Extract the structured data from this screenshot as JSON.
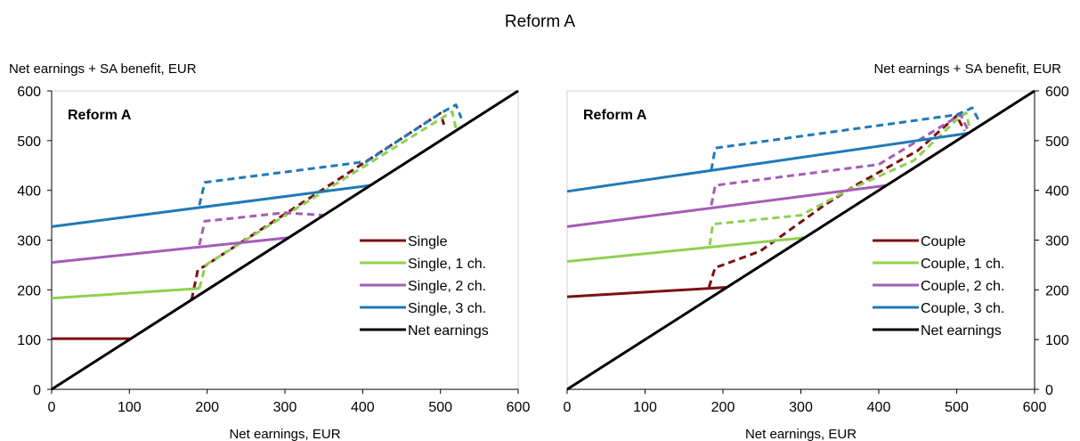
{
  "figure_title": "Reform A",
  "chart_data": [
    {
      "type": "line",
      "panel_label": "Reform A",
      "xlabel": "Net earnings, EUR",
      "ylabel": "Net earnings + SA benefit, EUR",
      "xlim": [
        0,
        600
      ],
      "ylim": [
        0,
        600
      ],
      "xticks": [
        0,
        100,
        200,
        300,
        400,
        500,
        600
      ],
      "yticks": [
        0,
        100,
        200,
        300,
        400,
        500,
        600
      ],
      "yaxis_side": "left",
      "legend_position": "bottom-right",
      "series": [
        {
          "name": "Single",
          "color": "#7b1113",
          "style": "solid",
          "points": [
            [
              0,
              102
            ],
            [
              102,
              102
            ]
          ]
        },
        {
          "name": "Single",
          "color": "#7b1113",
          "style": "dashed",
          "legend": false,
          "points": [
            [
              180,
              180
            ],
            [
              188,
              240
            ],
            [
              197,
              248
            ],
            [
              500,
              555
            ],
            [
              505,
              530
            ]
          ]
        },
        {
          "name": "Single, 1 ch.",
          "color": "#8fd14f",
          "style": "solid",
          "points": [
            [
              0,
              183
            ],
            [
              190,
              203
            ]
          ]
        },
        {
          "name": "Single, 1 ch.",
          "color": "#8fd14f",
          "style": "dashed",
          "legend": false,
          "points": [
            [
              190,
              203
            ],
            [
              198,
              250
            ],
            [
              515,
              558
            ],
            [
              520,
              525
            ]
          ]
        },
        {
          "name": "Single, 2 ch.",
          "color": "#a55cb8",
          "style": "solid",
          "points": [
            [
              0,
              255
            ],
            [
              305,
              305
            ]
          ]
        },
        {
          "name": "Single, 2 ch.",
          "color": "#a55cb8",
          "style": "dashed",
          "legend": false,
          "points": [
            [
              190,
              290
            ],
            [
              197,
              338
            ],
            [
              300,
              355
            ],
            [
              350,
              350
            ]
          ]
        },
        {
          "name": "Single, 3 ch.",
          "color": "#1f7ab8",
          "style": "solid",
          "points": [
            [
              0,
              327
            ],
            [
              410,
              410
            ]
          ]
        },
        {
          "name": "Single, 3 ch.",
          "color": "#1f7ab8",
          "style": "dashed",
          "legend": false,
          "points": [
            [
              190,
              370
            ],
            [
              197,
              416
            ],
            [
              405,
              458
            ],
            [
              500,
              555
            ],
            [
              520,
              572
            ],
            [
              527,
              545
            ]
          ]
        },
        {
          "name": "Net earnings",
          "color": "#000000",
          "style": "solid",
          "points": [
            [
              0,
              0
            ],
            [
              600,
              600
            ]
          ]
        }
      ]
    },
    {
      "type": "line",
      "panel_label": "Reform A",
      "xlabel": "Net earnings, EUR",
      "ylabel": "Net earnings + SA benefit, EUR",
      "xlim": [
        0,
        600
      ],
      "ylim": [
        0,
        600
      ],
      "xticks": [
        0,
        100,
        200,
        300,
        400,
        500,
        600
      ],
      "yticks": [
        0,
        100,
        200,
        300,
        400,
        500,
        600
      ],
      "yaxis_side": "right",
      "legend_position": "bottom-right",
      "series": [
        {
          "name": "Couple",
          "color": "#7b1113",
          "style": "solid",
          "points": [
            [
              0,
              186
            ],
            [
              205,
              205
            ]
          ]
        },
        {
          "name": "Couple",
          "color": "#7b1113",
          "style": "dashed",
          "legend": false,
          "points": [
            [
              182,
              205
            ],
            [
              190,
              245
            ],
            [
              200,
              250
            ],
            [
              248,
              278
            ],
            [
              330,
              370
            ],
            [
              370,
              410
            ],
            [
              450,
              480
            ],
            [
              500,
              550
            ],
            [
              510,
              520
            ]
          ]
        },
        {
          "name": "Couple, 1 ch.",
          "color": "#8fd14f",
          "style": "solid",
          "points": [
            [
              0,
              257
            ],
            [
              305,
              305
            ]
          ]
        },
        {
          "name": "Couple, 1 ch.",
          "color": "#8fd14f",
          "style": "dashed",
          "legend": false,
          "points": [
            [
              183,
              290
            ],
            [
              187,
              332
            ],
            [
              300,
              350
            ],
            [
              360,
              400
            ],
            [
              445,
              460
            ],
            [
              500,
              542
            ],
            [
              512,
              556
            ],
            [
              516,
              530
            ]
          ]
        },
        {
          "name": "Couple, 2 ch.",
          "color": "#a55cb8",
          "style": "solid",
          "points": [
            [
              0,
              327
            ],
            [
              410,
              410
            ]
          ]
        },
        {
          "name": "Couple, 2 ch.",
          "color": "#a55cb8",
          "style": "dashed",
          "legend": false,
          "points": [
            [
              185,
              370
            ],
            [
              190,
              410
            ],
            [
              400,
              452
            ],
            [
              505,
              552
            ],
            [
              515,
              520
            ]
          ]
        },
        {
          "name": "Couple, 3 ch.",
          "color": "#1f7ab8",
          "style": "solid",
          "points": [
            [
              0,
              398
            ],
            [
              515,
              515
            ]
          ]
        },
        {
          "name": "Couple, 3 ch.",
          "color": "#1f7ab8",
          "style": "dashed",
          "legend": false,
          "points": [
            [
              185,
              440
            ],
            [
              190,
              485
            ],
            [
              500,
              552
            ],
            [
              520,
              566
            ],
            [
              530,
              535
            ]
          ]
        },
        {
          "name": "Net earnings",
          "color": "#000000",
          "style": "solid",
          "points": [
            [
              0,
              0
            ],
            [
              600,
              600
            ]
          ]
        }
      ]
    }
  ]
}
